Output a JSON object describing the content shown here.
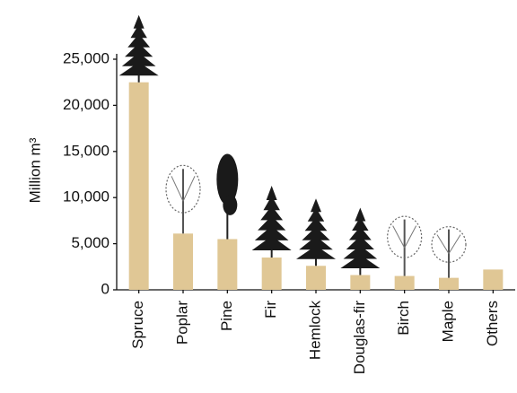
{
  "chart_data": {
    "type": "bar",
    "y_label": "Million m³",
    "categories": [
      "Spruce",
      "Poplar",
      "Pine",
      "Fir",
      "Hemlock",
      "Douglas-fir",
      "Birch",
      "Maple",
      "Others"
    ],
    "values": [
      22500,
      6100,
      5500,
      3500,
      2600,
      1600,
      1500,
      1300,
      2200
    ],
    "color": "#e0c795",
    "ylim": [
      0,
      25000
    ],
    "yticks": [
      0,
      {
        "value": 5000,
        "label": "5,000"
      },
      {
        "value": 10000,
        "label": "10,000"
      },
      {
        "value": 15000,
        "label": "15,000"
      },
      {
        "value": 20000,
        "label": "20,000"
      },
      {
        "value": 25000,
        "label": "25,000"
      }
    ],
    "grid": false
  }
}
